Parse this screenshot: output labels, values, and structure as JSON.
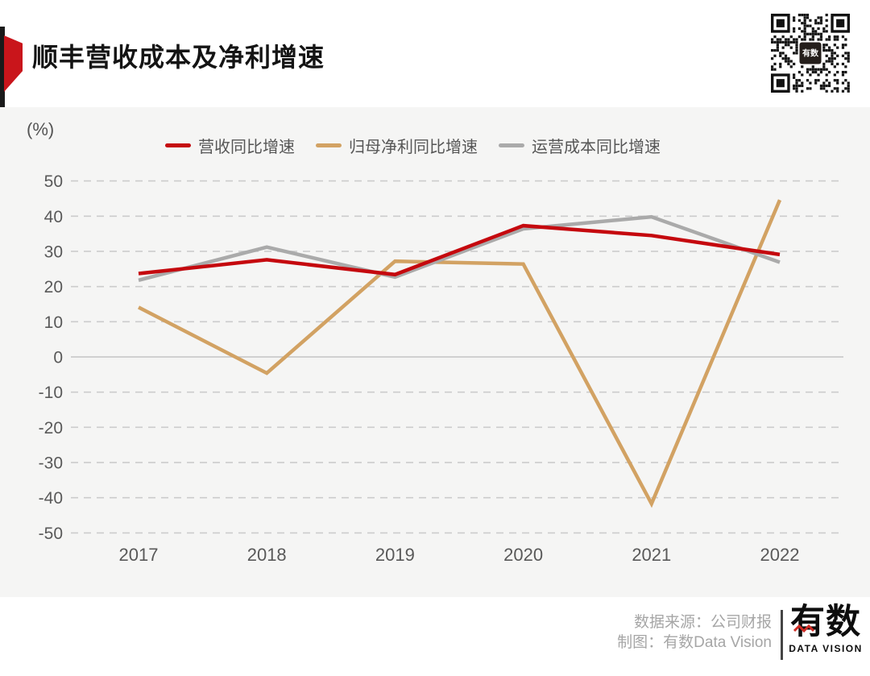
{
  "header": {
    "title": "顺丰营收成本及净利增速"
  },
  "chart_data": {
    "type": "line",
    "title": "顺丰营收成本及净利增速",
    "unit_label": "(%)",
    "categories": [
      "2017",
      "2018",
      "2019",
      "2020",
      "2021",
      "2022"
    ],
    "series": [
      {
        "name": "营收同比增速",
        "color": "#c5090e",
        "values": [
          23.7,
          27.6,
          23.4,
          37.3,
          34.5,
          29.1
        ]
      },
      {
        "name": "归母净利同比增速",
        "color": "#d2a263",
        "values": [
          14.1,
          -4.6,
          27.2,
          26.4,
          -41.7,
          44.6
        ]
      },
      {
        "name": "运营成本同比增速",
        "color": "#aaaaaa",
        "values": [
          21.8,
          31.2,
          22.7,
          36.4,
          39.8,
          26.9
        ]
      }
    ],
    "ylim": [
      -50,
      50
    ],
    "ytick_step": 10,
    "grid": "horizontal-dashed, zero line solid",
    "legend_position": "top",
    "draw_order": [
      1,
      2,
      0
    ]
  },
  "footer": {
    "source_line": "数据来源：公司财报",
    "credit_line": "制图：有数Data Vision",
    "logo_text": "有数",
    "logo_subtext": "DATA VISION"
  },
  "colors": {
    "accent_red": "#c9151b",
    "panel_bg": "#f5f5f4",
    "grid": "#cccccc",
    "zero_line": "#c4c4c4",
    "axis_text": "#595959",
    "footer_text": "#a6a6a6"
  }
}
